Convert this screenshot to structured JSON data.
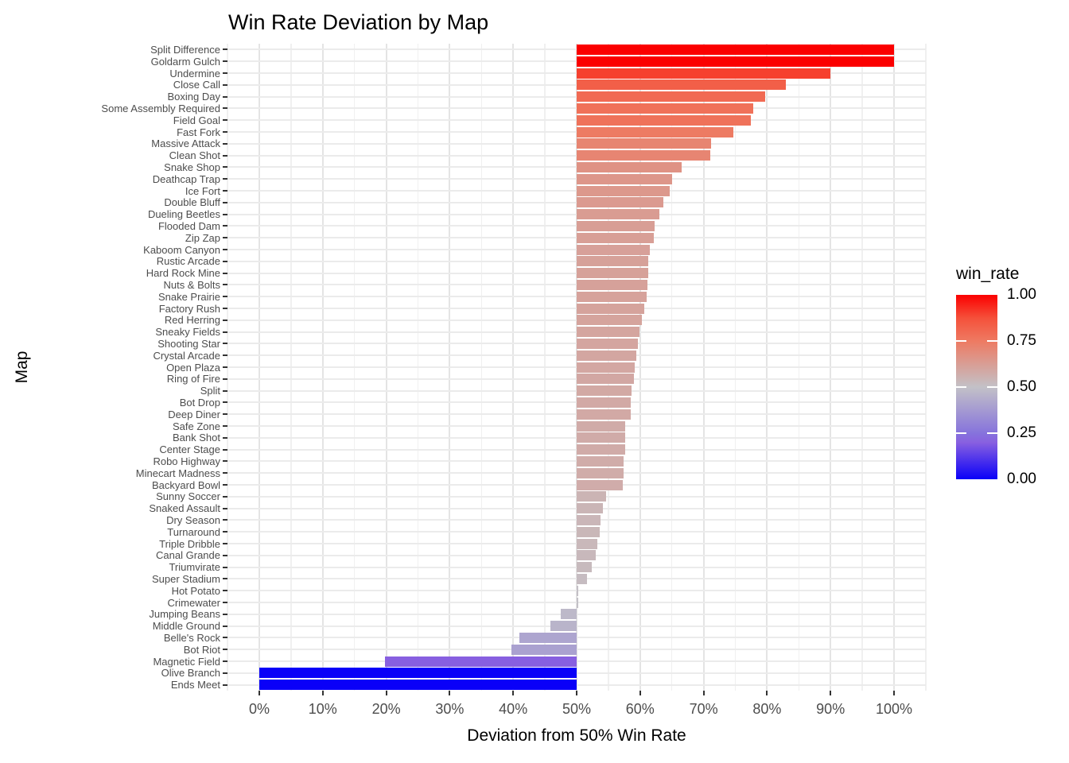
{
  "title": "Win Rate Deviation by Map",
  "x_axis": {
    "title": "Deviation from 50% Win Rate",
    "tick_labels": [
      "0%",
      "10%",
      "20%",
      "30%",
      "40%",
      "50%",
      "60%",
      "70%",
      "80%",
      "90%",
      "100%"
    ],
    "tick_values": [
      0,
      10,
      20,
      30,
      40,
      50,
      60,
      70,
      80,
      90,
      100
    ]
  },
  "y_axis": {
    "title": "Map"
  },
  "legend": {
    "title": "win_rate",
    "tick_labels": [
      "1.00",
      "0.75",
      "0.50",
      "0.25",
      "0.00"
    ],
    "tick_values": [
      1.0,
      0.75,
      0.5,
      0.25,
      0.0
    ]
  },
  "colors": {
    "gradient_stops": [
      [
        0.0,
        "#0a00f8"
      ],
      [
        0.2,
        "#8860e0"
      ],
      [
        0.25,
        "#8673dc"
      ],
      [
        0.5,
        "#c3c1c7"
      ],
      [
        0.75,
        "#ee7a62"
      ],
      [
        0.875,
        "#f5503a"
      ],
      [
        1.0,
        "#fb0000"
      ]
    ],
    "grid_major": "#e4e4e4",
    "grid_minor": "#f0f0f0",
    "grid_row": "#ebebeb",
    "axis_text": "#4d4d4d",
    "tick_mark": "#333333"
  },
  "chart_data": {
    "type": "bar",
    "orientation": "horizontal",
    "baseline": 0.5,
    "title": "Win Rate Deviation by Map",
    "xlabel": "Deviation from 50% Win Rate",
    "ylabel": "Map",
    "xlim": [
      0,
      1
    ],
    "grid": true,
    "legend_title": "win_rate",
    "legend_position": "right",
    "categories": [
      "Split Difference",
      "Goldarm Gulch",
      "Undermine",
      "Close Call",
      "Boxing Day",
      "Some Assembly Required",
      "Field Goal",
      "Fast Fork",
      "Massive Attack",
      "Clean Shot",
      "Snake Shop",
      "Deathcap Trap",
      "Ice Fort",
      "Double Bluff",
      "Dueling Beetles",
      "Flooded Dam",
      "Zip Zap",
      "Kaboom Canyon",
      "Rustic Arcade",
      "Hard Rock Mine",
      "Nuts & Bolts",
      "Snake Prairie",
      "Factory Rush",
      "Red Herring",
      "Sneaky Fields",
      "Shooting Star",
      "Crystal Arcade",
      "Open Plaza",
      "Ring of Fire",
      "Split",
      "Bot Drop",
      "Deep Diner",
      "Safe Zone",
      "Bank Shot",
      "Center Stage",
      "Robo Highway",
      "Minecart Madness",
      "Backyard Bowl",
      "Sunny Soccer",
      "Snaked Assault",
      "Dry Season",
      "Turnaround",
      "Triple Dribble",
      "Canal Grande",
      "Triumvirate",
      "Super Stadium",
      "Hot Potato",
      "Crimewater",
      "Jumping Beans",
      "Middle Ground",
      "Belle's Rock",
      "Bot Riot",
      "Magnetic Field",
      "Olive Branch",
      "Ends Meet"
    ],
    "values": [
      1.0,
      1.0,
      0.9,
      0.83,
      0.797,
      0.778,
      0.775,
      0.747,
      0.712,
      0.71,
      0.665,
      0.651,
      0.646,
      0.637,
      0.63,
      0.623,
      0.621,
      0.615,
      0.613,
      0.613,
      0.612,
      0.61,
      0.606,
      0.603,
      0.599,
      0.597,
      0.594,
      0.591,
      0.59,
      0.586,
      0.585,
      0.585,
      0.577,
      0.577,
      0.576,
      0.574,
      0.574,
      0.573,
      0.546,
      0.541,
      0.538,
      0.536,
      0.533,
      0.53,
      0.524,
      0.516,
      0.503,
      0.501,
      0.475,
      0.459,
      0.41,
      0.397,
      0.198,
      0.0,
      0.0
    ]
  }
}
